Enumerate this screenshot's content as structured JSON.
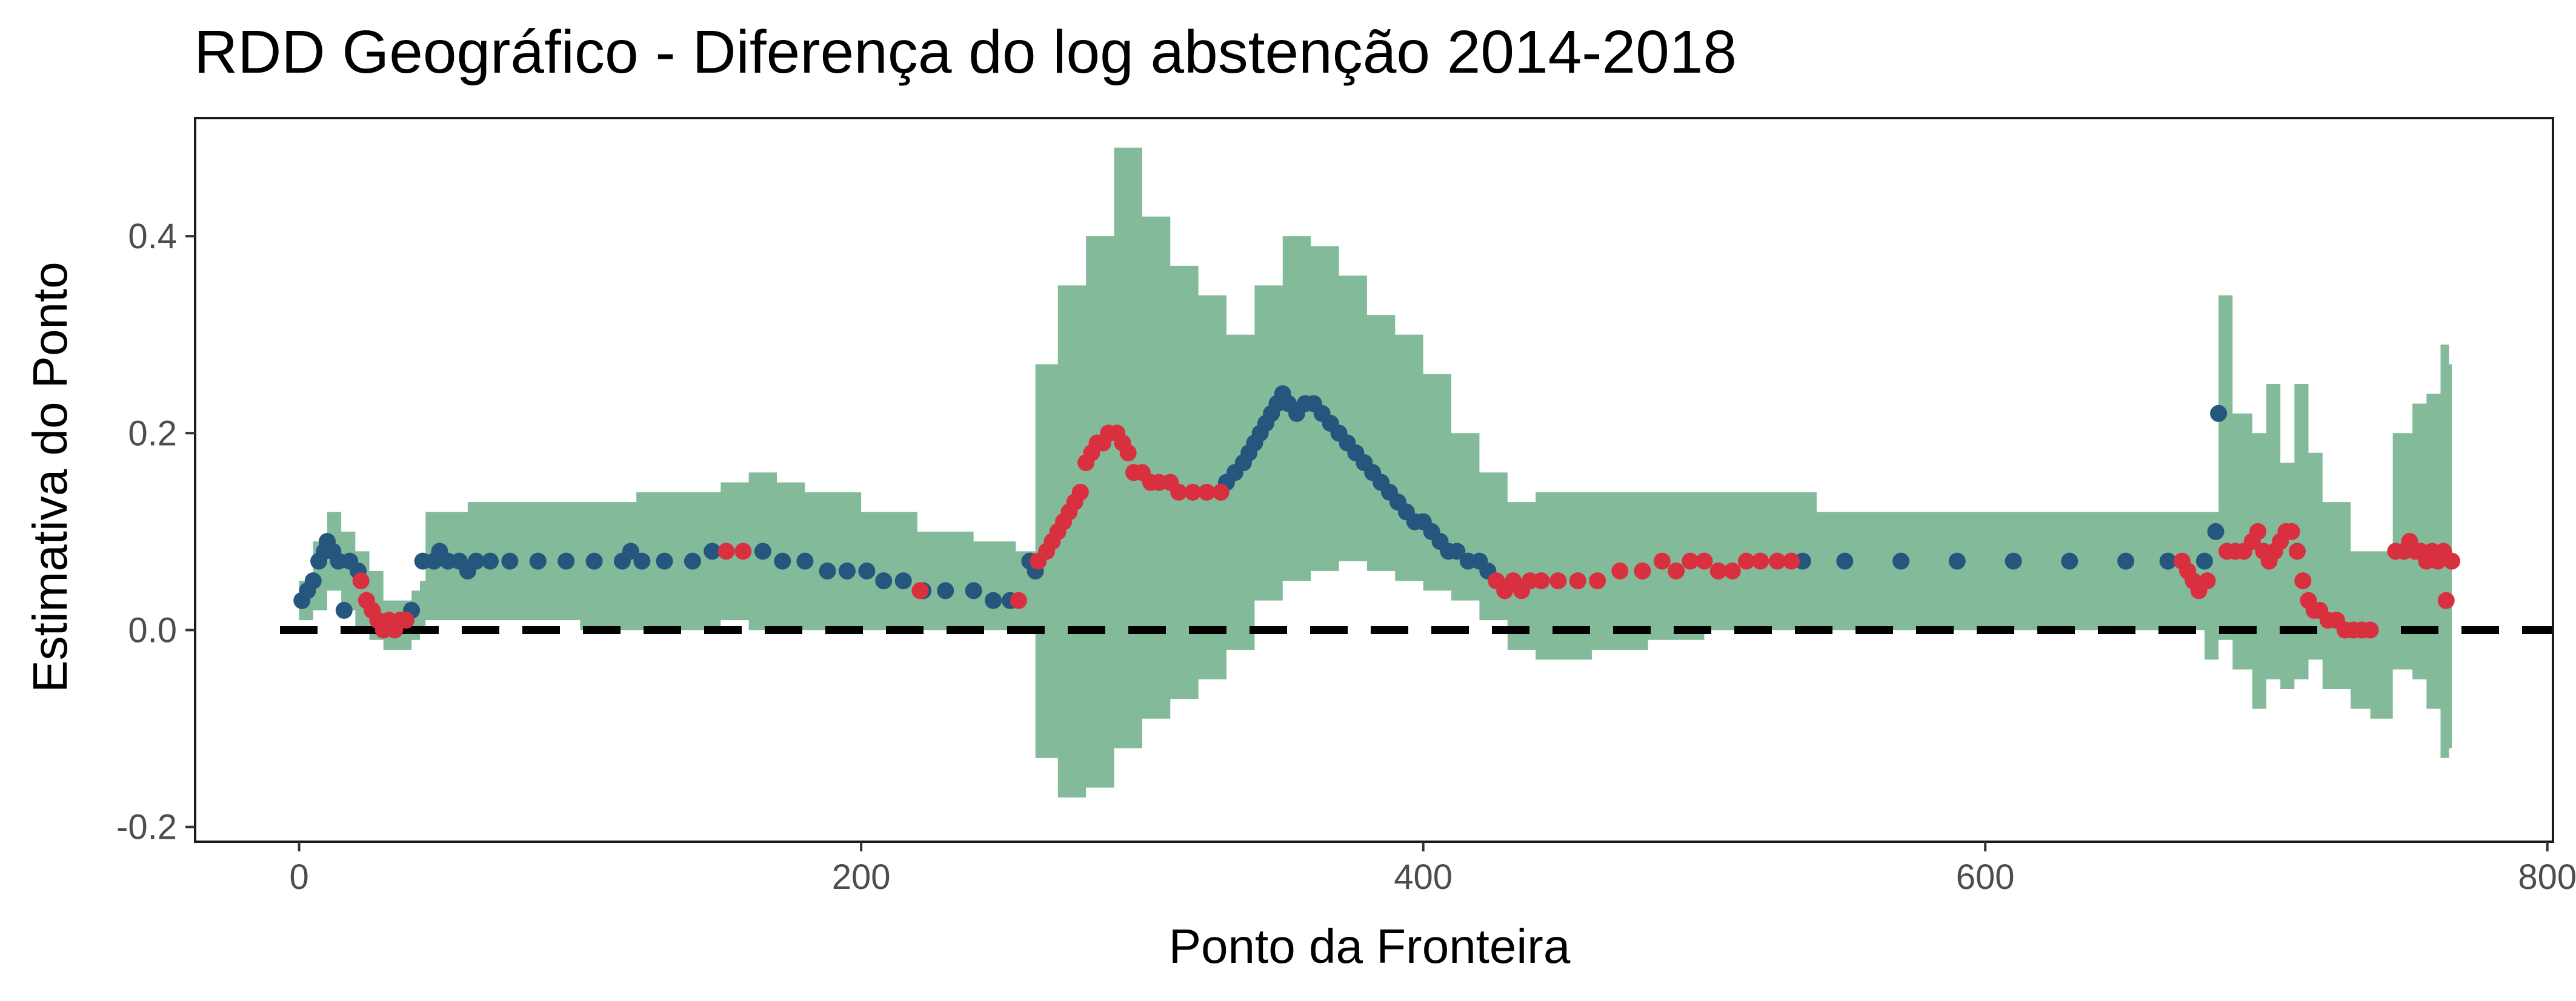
{
  "chart_data": {
    "type": "scatter",
    "title": "RDD Geográfico - Diferença do log abstenção 2014-2018",
    "xlabel": "Ponto da Fronteira",
    "ylabel": "Estimativa do Ponto",
    "xlim": [
      -37,
      802
    ],
    "ylim": [
      -0.215,
      0.52
    ],
    "x_ticks": [
      0,
      200,
      400,
      600,
      800
    ],
    "x_tick_labels": [
      "0",
      "200",
      "400",
      "600",
      "800"
    ],
    "y_ticks": [
      -0.2,
      0.0,
      0.2,
      0.4
    ],
    "y_tick_labels": [
      "-0.2",
      "0.0",
      "0.2",
      "0.4"
    ],
    "grid": false,
    "legend": "none",
    "reference_line": {
      "y": 0,
      "style": "dashed",
      "color": "#000000"
    },
    "colors": {
      "band": "#76b38f",
      "series_blue": "#24567e",
      "series_red": "#d93040",
      "axis_text": "#4d4d4d"
    },
    "confidence_band": [
      [
        0,
        0.01,
        0.05
      ],
      [
        5,
        0.02,
        0.09
      ],
      [
        10,
        0.04,
        0.12
      ],
      [
        15,
        0.02,
        0.1
      ],
      [
        20,
        0.0,
        0.08
      ],
      [
        25,
        -0.01,
        0.06
      ],
      [
        30,
        -0.02,
        0.03
      ],
      [
        35,
        -0.02,
        0.03
      ],
      [
        40,
        -0.01,
        0.04
      ],
      [
        43,
        0.0,
        0.05
      ],
      [
        45,
        0.01,
        0.12
      ],
      [
        60,
        0.01,
        0.13
      ],
      [
        80,
        0.01,
        0.13
      ],
      [
        100,
        0.0,
        0.13
      ],
      [
        120,
        0.0,
        0.14
      ],
      [
        140,
        0.0,
        0.14
      ],
      [
        150,
        0.01,
        0.15
      ],
      [
        160,
        0.0,
        0.16
      ],
      [
        170,
        0.0,
        0.15
      ],
      [
        180,
        0.0,
        0.14
      ],
      [
        200,
        0.0,
        0.12
      ],
      [
        220,
        0.0,
        0.1
      ],
      [
        240,
        0.0,
        0.09
      ],
      [
        255,
        0.0,
        0.08
      ],
      [
        262,
        -0.13,
        0.27
      ],
      [
        270,
        -0.17,
        0.35
      ],
      [
        280,
        -0.16,
        0.4
      ],
      [
        290,
        -0.12,
        0.49
      ],
      [
        300,
        -0.09,
        0.42
      ],
      [
        310,
        -0.07,
        0.37
      ],
      [
        320,
        -0.05,
        0.34
      ],
      [
        330,
        -0.02,
        0.3
      ],
      [
        340,
        0.03,
        0.35
      ],
      [
        350,
        0.05,
        0.4
      ],
      [
        360,
        0.06,
        0.39
      ],
      [
        370,
        0.07,
        0.36
      ],
      [
        380,
        0.06,
        0.32
      ],
      [
        390,
        0.05,
        0.3
      ],
      [
        400,
        0.04,
        0.26
      ],
      [
        410,
        0.03,
        0.2
      ],
      [
        420,
        0.01,
        0.16
      ],
      [
        430,
        -0.02,
        0.13
      ],
      [
        440,
        -0.03,
        0.14
      ],
      [
        460,
        -0.02,
        0.14
      ],
      [
        480,
        -0.01,
        0.14
      ],
      [
        500,
        0.0,
        0.14
      ],
      [
        520,
        0.0,
        0.14
      ],
      [
        540,
        0.0,
        0.12
      ],
      [
        600,
        0.0,
        0.12
      ],
      [
        650,
        0.0,
        0.12
      ],
      [
        672,
        0.0,
        0.12
      ],
      [
        678,
        -0.03,
        0.12
      ],
      [
        683,
        -0.01,
        0.34
      ],
      [
        688,
        -0.04,
        0.22
      ],
      [
        695,
        -0.08,
        0.2
      ],
      [
        700,
        -0.05,
        0.25
      ],
      [
        705,
        -0.06,
        0.17
      ],
      [
        710,
        -0.05,
        0.25
      ],
      [
        715,
        -0.03,
        0.18
      ],
      [
        720,
        -0.06,
        0.13
      ],
      [
        730,
        -0.08,
        0.08
      ],
      [
        737,
        -0.09,
        0.08
      ],
      [
        745,
        -0.04,
        0.2
      ],
      [
        752,
        -0.05,
        0.23
      ],
      [
        757,
        -0.08,
        0.24
      ],
      [
        762,
        -0.13,
        0.29
      ],
      [
        765,
        -0.12,
        0.27
      ]
    ],
    "series": [
      {
        "color": "blue",
        "points": [
          [
            1,
            0.03
          ],
          [
            3,
            0.04
          ],
          [
            5,
            0.05
          ],
          [
            7,
            0.07
          ],
          [
            9,
            0.08
          ],
          [
            10,
            0.09
          ],
          [
            12,
            0.08
          ],
          [
            14,
            0.07
          ],
          [
            16,
            0.02
          ],
          [
            18,
            0.07
          ],
          [
            21,
            0.06
          ],
          [
            40,
            0.02
          ],
          [
            44,
            0.07
          ],
          [
            48,
            0.07
          ],
          [
            50,
            0.08
          ],
          [
            53,
            0.07
          ],
          [
            57,
            0.07
          ],
          [
            60,
            0.06
          ],
          [
            63,
            0.07
          ],
          [
            68,
            0.07
          ],
          [
            75,
            0.07
          ],
          [
            85,
            0.07
          ],
          [
            95,
            0.07
          ],
          [
            105,
            0.07
          ],
          [
            115,
            0.07
          ],
          [
            118,
            0.08
          ],
          [
            122,
            0.07
          ],
          [
            130,
            0.07
          ],
          [
            140,
            0.07
          ],
          [
            147,
            0.08
          ],
          [
            165,
            0.08
          ],
          [
            172,
            0.07
          ],
          [
            180,
            0.07
          ],
          [
            188,
            0.06
          ],
          [
            195,
            0.06
          ],
          [
            202,
            0.06
          ],
          [
            208,
            0.05
          ],
          [
            215,
            0.05
          ],
          [
            222,
            0.04
          ],
          [
            230,
            0.04
          ],
          [
            240,
            0.04
          ],
          [
            247,
            0.03
          ],
          [
            253,
            0.03
          ],
          [
            260,
            0.07
          ],
          [
            262,
            0.06
          ],
          [
            330,
            0.15
          ],
          [
            333,
            0.16
          ],
          [
            336,
            0.17
          ],
          [
            338,
            0.18
          ],
          [
            340,
            0.19
          ],
          [
            342,
            0.2
          ],
          [
            344,
            0.21
          ],
          [
            346,
            0.22
          ],
          [
            348,
            0.23
          ],
          [
            350,
            0.24
          ],
          [
            352,
            0.23
          ],
          [
            355,
            0.22
          ],
          [
            358,
            0.23
          ],
          [
            361,
            0.23
          ],
          [
            364,
            0.22
          ],
          [
            367,
            0.21
          ],
          [
            370,
            0.2
          ],
          [
            373,
            0.19
          ],
          [
            376,
            0.18
          ],
          [
            379,
            0.17
          ],
          [
            382,
            0.16
          ],
          [
            385,
            0.15
          ],
          [
            388,
            0.14
          ],
          [
            391,
            0.13
          ],
          [
            394,
            0.12
          ],
          [
            397,
            0.11
          ],
          [
            400,
            0.11
          ],
          [
            403,
            0.1
          ],
          [
            406,
            0.09
          ],
          [
            409,
            0.08
          ],
          [
            412,
            0.08
          ],
          [
            416,
            0.07
          ],
          [
            420,
            0.07
          ],
          [
            423,
            0.06
          ],
          [
            535,
            0.07
          ],
          [
            550,
            0.07
          ],
          [
            570,
            0.07
          ],
          [
            590,
            0.07
          ],
          [
            610,
            0.07
          ],
          [
            630,
            0.07
          ],
          [
            650,
            0.07
          ],
          [
            665,
            0.07
          ],
          [
            678,
            0.07
          ],
          [
            682,
            0.1
          ],
          [
            683,
            0.22
          ]
        ]
      },
      {
        "color": "red",
        "points": [
          [
            22,
            0.05
          ],
          [
            24,
            0.03
          ],
          [
            26,
            0.02
          ],
          [
            28,
            0.01
          ],
          [
            30,
            0.0
          ],
          [
            32,
            0.01
          ],
          [
            34,
            0.0
          ],
          [
            36,
            0.01
          ],
          [
            38,
            0.01
          ],
          [
            152,
            0.08
          ],
          [
            158,
            0.08
          ],
          [
            221,
            0.04
          ],
          [
            256,
            0.03
          ],
          [
            263,
            0.07
          ],
          [
            266,
            0.08
          ],
          [
            268,
            0.09
          ],
          [
            270,
            0.1
          ],
          [
            272,
            0.11
          ],
          [
            274,
            0.12
          ],
          [
            276,
            0.13
          ],
          [
            278,
            0.14
          ],
          [
            280,
            0.17
          ],
          [
            282,
            0.18
          ],
          [
            284,
            0.19
          ],
          [
            286,
            0.19
          ],
          [
            288,
            0.2
          ],
          [
            291,
            0.2
          ],
          [
            293,
            0.19
          ],
          [
            295,
            0.18
          ],
          [
            297,
            0.16
          ],
          [
            300,
            0.16
          ],
          [
            303,
            0.15
          ],
          [
            306,
            0.15
          ],
          [
            310,
            0.15
          ],
          [
            313,
            0.14
          ],
          [
            318,
            0.14
          ],
          [
            323,
            0.14
          ],
          [
            328,
            0.14
          ],
          [
            426,
            0.05
          ],
          [
            429,
            0.04
          ],
          [
            432,
            0.05
          ],
          [
            435,
            0.04
          ],
          [
            438,
            0.05
          ],
          [
            442,
            0.05
          ],
          [
            448,
            0.05
          ],
          [
            455,
            0.05
          ],
          [
            462,
            0.05
          ],
          [
            470,
            0.06
          ],
          [
            478,
            0.06
          ],
          [
            485,
            0.07
          ],
          [
            490,
            0.06
          ],
          [
            495,
            0.07
          ],
          [
            500,
            0.07
          ],
          [
            505,
            0.06
          ],
          [
            510,
            0.06
          ],
          [
            515,
            0.07
          ],
          [
            520,
            0.07
          ],
          [
            526,
            0.07
          ],
          [
            531,
            0.07
          ],
          [
            670,
            0.07
          ],
          [
            672,
            0.06
          ],
          [
            674,
            0.05
          ],
          [
            676,
            0.04
          ],
          [
            679,
            0.05
          ],
          [
            686,
            0.08
          ],
          [
            689,
            0.08
          ],
          [
            692,
            0.08
          ],
          [
            695,
            0.09
          ],
          [
            697,
            0.1
          ],
          [
            699,
            0.08
          ],
          [
            701,
            0.07
          ],
          [
            703,
            0.08
          ],
          [
            705,
            0.09
          ],
          [
            707,
            0.1
          ],
          [
            709,
            0.1
          ],
          [
            711,
            0.08
          ],
          [
            713,
            0.05
          ],
          [
            715,
            0.03
          ],
          [
            717,
            0.02
          ],
          [
            719,
            0.02
          ],
          [
            722,
            0.01
          ],
          [
            725,
            0.01
          ],
          [
            728,
            0.0
          ],
          [
            731,
            0.0
          ],
          [
            734,
            0.0
          ],
          [
            737,
            0.0
          ],
          [
            746,
            0.08
          ],
          [
            749,
            0.08
          ],
          [
            751,
            0.09
          ],
          [
            753,
            0.08
          ],
          [
            755,
            0.08
          ],
          [
            757,
            0.07
          ],
          [
            759,
            0.08
          ],
          [
            761,
            0.07
          ],
          [
            763,
            0.08
          ],
          [
            764,
            0.03
          ],
          [
            766,
            0.07
          ]
        ]
      }
    ]
  }
}
